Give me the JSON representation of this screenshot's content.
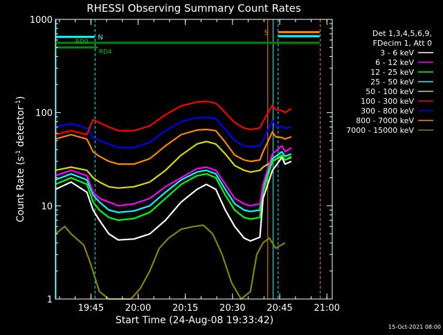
{
  "chart_data": {
    "type": "line",
    "title": "RHESSI Observing Summary Count Rates",
    "xlabel": "Start Time (24-Aug-08 19:33:42)",
    "ylabel_main": "Count Rate (s",
    "ylabel_sup1": "-1",
    "ylabel_mid": " detector",
    "ylabel_sup2": "-1",
    "ylabel_end": ")",
    "y_scale": "log",
    "ylim": [
      1,
      1000
    ],
    "y_ticks": [
      1,
      10,
      100,
      1000
    ],
    "y_tick_labels": [
      "1",
      "10",
      "100",
      "1000"
    ],
    "xlim_minutes": [
      0,
      88
    ],
    "x_ticks_minutes": [
      11.3,
      26.3,
      41.3,
      56.3,
      71.3,
      86.3
    ],
    "x_tick_labels": [
      "19:45",
      "20:00",
      "20:15",
      "20:30",
      "20:45",
      "21:00"
    ],
    "legend_header": [
      "Det 1,3,4,5,6,9,",
      "FDecim 1, Att 0"
    ],
    "timestamp": "15-Oct-2021 08:00",
    "flag_labels": {
      "N": "N",
      "S": "S",
      "RD0": "RD0",
      "RD4": "RD4"
    },
    "series": [
      {
        "name": "3 - 6 keV",
        "color": "#ffffff",
        "values": [
          [
            0,
            15
          ],
          [
            5,
            18
          ],
          [
            10,
            14
          ],
          [
            12,
            9
          ],
          [
            14,
            7
          ],
          [
            17,
            5
          ],
          [
            20,
            4.3
          ],
          [
            25,
            4.4
          ],
          [
            30,
            5
          ],
          [
            35,
            7
          ],
          [
            40,
            11
          ],
          [
            45,
            15
          ],
          [
            48,
            17
          ],
          [
            51,
            15
          ],
          [
            54,
            9
          ],
          [
            57,
            6
          ],
          [
            60,
            4.5
          ],
          [
            62,
            4.2
          ],
          [
            65,
            4.6
          ],
          [
            66,
            12
          ],
          [
            69,
            24
          ],
          [
            72,
            33
          ],
          [
            73,
            28
          ],
          [
            75,
            30
          ]
        ]
      },
      {
        "name": "6 - 12 keV",
        "color": "#ff00ff",
        "values": [
          [
            0,
            21
          ],
          [
            5,
            24
          ],
          [
            10,
            21
          ],
          [
            12,
            14
          ],
          [
            14,
            12
          ],
          [
            17,
            11
          ],
          [
            20,
            10
          ],
          [
            25,
            10.5
          ],
          [
            30,
            12
          ],
          [
            35,
            16
          ],
          [
            40,
            20
          ],
          [
            45,
            25
          ],
          [
            48,
            26
          ],
          [
            51,
            24
          ],
          [
            54,
            17
          ],
          [
            57,
            12
          ],
          [
            60,
            10.5
          ],
          [
            62,
            10
          ],
          [
            65,
            10.5
          ],
          [
            66,
            17
          ],
          [
            69,
            36
          ],
          [
            72,
            44
          ],
          [
            73,
            38
          ],
          [
            75,
            42
          ]
        ]
      },
      {
        "name": "12 - 25 keV",
        "color": "#00ff00",
        "values": [
          [
            0,
            17
          ],
          [
            5,
            20
          ],
          [
            10,
            17
          ],
          [
            12,
            11
          ],
          [
            14,
            9
          ],
          [
            17,
            7.5
          ],
          [
            20,
            7
          ],
          [
            25,
            7.3
          ],
          [
            30,
            8.5
          ],
          [
            35,
            12
          ],
          [
            40,
            17
          ],
          [
            45,
            21
          ],
          [
            48,
            22
          ],
          [
            51,
            20
          ],
          [
            54,
            13
          ],
          [
            57,
            9
          ],
          [
            60,
            7.5
          ],
          [
            62,
            7.2
          ],
          [
            65,
            7.5
          ],
          [
            66,
            14
          ],
          [
            69,
            30
          ],
          [
            72,
            35
          ],
          [
            73,
            31
          ],
          [
            75,
            34
          ]
        ]
      },
      {
        "name": "25 - 50 keV",
        "color": "#00ffff",
        "values": [
          [
            0,
            19
          ],
          [
            5,
            22
          ],
          [
            10,
            19
          ],
          [
            12,
            13
          ],
          [
            14,
            11
          ],
          [
            17,
            9
          ],
          [
            20,
            8.5
          ],
          [
            25,
            8.8
          ],
          [
            30,
            10
          ],
          [
            35,
            14
          ],
          [
            40,
            19
          ],
          [
            45,
            23
          ],
          [
            48,
            24
          ],
          [
            51,
            22
          ],
          [
            54,
            15
          ],
          [
            57,
            10.5
          ],
          [
            60,
            9
          ],
          [
            62,
            8.7
          ],
          [
            65,
            9
          ],
          [
            66,
            16
          ],
          [
            69,
            32
          ],
          [
            72,
            38
          ],
          [
            73,
            34
          ],
          [
            75,
            36
          ]
        ]
      },
      {
        "name": "50 - 100 keV",
        "color": "#dddd00",
        "values": [
          [
            0,
            24
          ],
          [
            5,
            26
          ],
          [
            10,
            24
          ],
          [
            12,
            20
          ],
          [
            14,
            18
          ],
          [
            17,
            16
          ],
          [
            20,
            15.5
          ],
          [
            25,
            16
          ],
          [
            30,
            18
          ],
          [
            35,
            24
          ],
          [
            40,
            35
          ],
          [
            45,
            46
          ],
          [
            48,
            49
          ],
          [
            51,
            46
          ],
          [
            54,
            36
          ],
          [
            57,
            27
          ],
          [
            60,
            24
          ],
          [
            62,
            23
          ],
          [
            65,
            24
          ],
          [
            66,
            26
          ],
          [
            69,
            30
          ],
          [
            72,
            34
          ],
          [
            73,
            31
          ],
          [
            75,
            33
          ]
        ]
      },
      {
        "name": "100 - 300 keV",
        "color": "#ff0000",
        "values": [
          [
            0,
            58
          ],
          [
            5,
            64
          ],
          [
            10,
            58
          ],
          [
            12,
            84
          ],
          [
            14,
            78
          ],
          [
            17,
            70
          ],
          [
            20,
            64
          ],
          [
            25,
            64
          ],
          [
            30,
            72
          ],
          [
            35,
            95
          ],
          [
            40,
            118
          ],
          [
            45,
            130
          ],
          [
            48,
            132
          ],
          [
            51,
            126
          ],
          [
            54,
            100
          ],
          [
            57,
            78
          ],
          [
            60,
            68
          ],
          [
            62,
            66
          ],
          [
            65,
            68
          ],
          [
            66,
            80
          ],
          [
            69,
            120
          ],
          [
            70,
            108
          ],
          [
            72,
            105
          ],
          [
            73,
            100
          ],
          [
            75,
            110
          ]
        ]
      },
      {
        "name": "300 - 800 keV",
        "color": "#0000ff",
        "values": [
          [
            0,
            70
          ],
          [
            5,
            76
          ],
          [
            10,
            68
          ],
          [
            12,
            54
          ],
          [
            14,
            50
          ],
          [
            17,
            46
          ],
          [
            20,
            42
          ],
          [
            25,
            42
          ],
          [
            30,
            48
          ],
          [
            35,
            64
          ],
          [
            40,
            80
          ],
          [
            45,
            88
          ],
          [
            48,
            89
          ],
          [
            51,
            86
          ],
          [
            54,
            66
          ],
          [
            57,
            50
          ],
          [
            60,
            44
          ],
          [
            62,
            43
          ],
          [
            65,
            44
          ],
          [
            66,
            50
          ],
          [
            69,
            82
          ],
          [
            70,
            72
          ],
          [
            72,
            70
          ],
          [
            73,
            68
          ],
          [
            75,
            70
          ]
        ]
      },
      {
        "name": "800 - 7000 keV",
        "color": "#ff8800",
        "values": [
          [
            0,
            52
          ],
          [
            5,
            58
          ],
          [
            10,
            52
          ],
          [
            12,
            38
          ],
          [
            14,
            34
          ],
          [
            17,
            30
          ],
          [
            20,
            28
          ],
          [
            25,
            28
          ],
          [
            30,
            32
          ],
          [
            35,
            44
          ],
          [
            40,
            58
          ],
          [
            45,
            65
          ],
          [
            48,
            66
          ],
          [
            51,
            64
          ],
          [
            54,
            48
          ],
          [
            57,
            35
          ],
          [
            60,
            31
          ],
          [
            62,
            30
          ],
          [
            65,
            31
          ],
          [
            66,
            38
          ],
          [
            69,
            62
          ],
          [
            70,
            55
          ],
          [
            72,
            54
          ],
          [
            73,
            52
          ],
          [
            75,
            55
          ]
        ]
      },
      {
        "name": "7000 - 15000 keV",
        "color": "#888800",
        "values": [
          [
            0,
            5
          ],
          [
            3,
            6
          ],
          [
            5,
            5
          ],
          [
            9,
            3.8
          ],
          [
            11,
            2.5
          ],
          [
            14,
            1.2
          ],
          [
            17,
            1
          ],
          [
            24,
            1
          ],
          [
            27,
            1.3
          ],
          [
            30,
            2
          ],
          [
            33,
            3.5
          ],
          [
            36,
            4.5
          ],
          [
            40,
            5.6
          ],
          [
            44,
            6
          ],
          [
            47,
            6.2
          ],
          [
            50,
            5
          ],
          [
            53,
            3
          ],
          [
            56,
            1.5
          ],
          [
            59,
            1
          ],
          [
            62,
            1.2
          ],
          [
            64,
            3
          ],
          [
            66,
            4
          ],
          [
            68,
            4.5
          ],
          [
            70,
            3.5
          ],
          [
            73,
            4
          ]
        ]
      }
    ],
    "flags": {
      "N_bar": {
        "x": [
          0,
          12.5
        ],
        "y": 650,
        "color": "#00ffff"
      },
      "N_bar2": {
        "x": [
          12.5,
          12.5
        ],
        "y": 650,
        "color": "#00ffff"
      },
      "S_bar": {
        "x": [
          70.8,
          84
        ],
        "y": 730,
        "color": "#ff8800"
      },
      "S_bar2": {
        "x": [
          70.8,
          84
        ],
        "y": 660,
        "color": "#00ffff"
      },
      "RD0_bar": {
        "x": [
          0,
          84
        ],
        "y": 560,
        "color": "#008800"
      },
      "RD4_bar": {
        "x": [
          0,
          13.5
        ],
        "y": 500,
        "color": "#008800"
      }
    },
    "vlines": [
      {
        "x": 0.2,
        "color": "#00ffff",
        "style": "solid"
      },
      {
        "x": 12.6,
        "color": "#00ffff",
        "style": "dashed"
      },
      {
        "x": 67.5,
        "color": "#ff8800",
        "style": "solid"
      },
      {
        "x": 69.2,
        "color": "#00ffff",
        "style": "solid"
      },
      {
        "x": 70.8,
        "color": "#00ffff",
        "style": "dashed"
      },
      {
        "x": 84.2,
        "color": "#ff8800",
        "style": "dashed"
      }
    ]
  }
}
